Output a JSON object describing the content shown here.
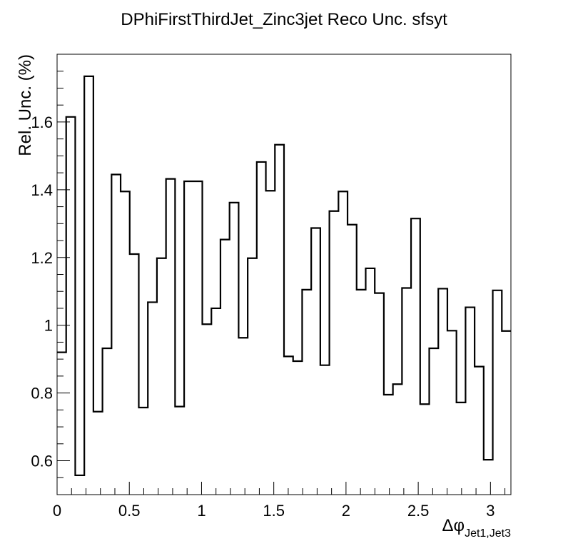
{
  "chart_data": {
    "type": "histogram",
    "title": "DPhiFirstThirdJet_Zinc3jet Reco Unc. sfsyt",
    "ylabel": "Rel. Unc. (%)",
    "xlabel_main": "Δφ",
    "xlabel_sub": "Jet1,Jet3",
    "xlim": [
      0,
      3.14159
    ],
    "ylim": [
      0.5,
      1.8
    ],
    "x_ticks": [
      0,
      0.5,
      1,
      1.5,
      2,
      2.5,
      3
    ],
    "x_tick_labels": [
      "0",
      "0.5",
      "1",
      "1.5",
      "2",
      "2.5",
      "3"
    ],
    "y_ticks": [
      0.6,
      0.8,
      1.0,
      1.2,
      1.4,
      1.6
    ],
    "y_tick_labels": [
      "0.6",
      "0.8",
      "1",
      "1.2",
      "1.4",
      "1.6"
    ],
    "n_bins": 50,
    "values": [
      0.92,
      1.615,
      0.557,
      1.735,
      0.745,
      0.932,
      1.445,
      1.395,
      1.21,
      0.757,
      1.068,
      1.198,
      1.432,
      0.76,
      1.425,
      1.425,
      1.003,
      1.05,
      1.253,
      1.362,
      0.963,
      1.198,
      1.482,
      1.397,
      1.533,
      0.908,
      0.894,
      1.105,
      1.287,
      0.882,
      1.337,
      1.395,
      1.297,
      1.105,
      1.168,
      1.095,
      0.795,
      0.826,
      1.11,
      1.315,
      0.767,
      0.932,
      1.108,
      0.984,
      0.772,
      1.053,
      0.878,
      0.603,
      1.103,
      0.983
    ],
    "grid": false,
    "line_color": "#000000"
  }
}
